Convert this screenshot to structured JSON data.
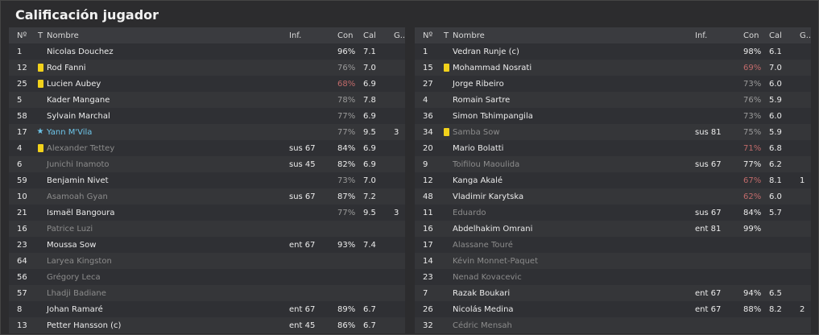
{
  "title": "Calificación jugador",
  "columns": {
    "num": "Nº",
    "t": "T",
    "name": "Nombre",
    "inf": "Inf.",
    "con": "Con",
    "cal": "Cal",
    "g": "G.."
  },
  "colors": {
    "yellow_card": "#f2d21b",
    "star": "#6ec6ea",
    "low_condition": "#c06a6a"
  },
  "left": [
    {
      "num": "1",
      "icon": "",
      "name": "Nicolas Douchez",
      "inf": "",
      "con": "96%",
      "cal": "7.1",
      "g": "",
      "style": "",
      "con_style": ""
    },
    {
      "num": "12",
      "icon": "yellow-card",
      "name": "Rod Fanni",
      "inf": "",
      "con": "76%",
      "cal": "7.0",
      "g": "",
      "style": "",
      "con_style": "mid"
    },
    {
      "num": "25",
      "icon": "yellow-card",
      "name": "Lucien Aubey",
      "inf": "",
      "con": "68%",
      "cal": "6.9",
      "g": "",
      "style": "",
      "con_style": "low"
    },
    {
      "num": "5",
      "icon": "",
      "name": "Kader Mangane",
      "inf": "",
      "con": "78%",
      "cal": "7.8",
      "g": "",
      "style": "",
      "con_style": "mid"
    },
    {
      "num": "58",
      "icon": "",
      "name": "Sylvain Marchal",
      "inf": "",
      "con": "77%",
      "cal": "6.9",
      "g": "",
      "style": "",
      "con_style": "mid"
    },
    {
      "num": "17",
      "icon": "star",
      "name": "Yann M'Vila",
      "inf": "",
      "con": "77%",
      "cal": "9.5",
      "g": "3",
      "style": "cyan",
      "con_style": "mid"
    },
    {
      "num": "4",
      "icon": "yellow-card",
      "name": "Alexander Tettey",
      "inf": "sus 67",
      "con": "84%",
      "cal": "6.9",
      "g": "",
      "style": "dim",
      "con_style": ""
    },
    {
      "num": "6",
      "icon": "",
      "name": "Junichi Inamoto",
      "inf": "sus 45",
      "con": "82%",
      "cal": "6.9",
      "g": "",
      "style": "dim",
      "con_style": ""
    },
    {
      "num": "59",
      "icon": "",
      "name": "Benjamin Nivet",
      "inf": "",
      "con": "73%",
      "cal": "7.0",
      "g": "",
      "style": "",
      "con_style": "mid"
    },
    {
      "num": "10",
      "icon": "",
      "name": "Asamoah Gyan",
      "inf": "sus 67",
      "con": "87%",
      "cal": "7.2",
      "g": "",
      "style": "dim",
      "con_style": ""
    },
    {
      "num": "21",
      "icon": "",
      "name": "Ismaël Bangoura",
      "inf": "",
      "con": "77%",
      "cal": "9.5",
      "g": "3",
      "style": "",
      "con_style": "mid"
    },
    {
      "num": "16",
      "icon": "",
      "name": "Patrice Luzi",
      "inf": "",
      "con": "",
      "cal": "",
      "g": "",
      "style": "dim",
      "con_style": ""
    },
    {
      "num": "23",
      "icon": "",
      "name": "Moussa Sow",
      "inf": "ent 67",
      "con": "93%",
      "cal": "7.4",
      "g": "",
      "style": "",
      "con_style": ""
    },
    {
      "num": "64",
      "icon": "",
      "name": "Laryea Kingston",
      "inf": "",
      "con": "",
      "cal": "",
      "g": "",
      "style": "dim",
      "con_style": ""
    },
    {
      "num": "56",
      "icon": "",
      "name": "Grégory Leca",
      "inf": "",
      "con": "",
      "cal": "",
      "g": "",
      "style": "dim",
      "con_style": ""
    },
    {
      "num": "57",
      "icon": "",
      "name": "Lhadji Badiane",
      "inf": "",
      "con": "",
      "cal": "",
      "g": "",
      "style": "dim",
      "con_style": ""
    },
    {
      "num": "8",
      "icon": "",
      "name": "Johan Ramaré",
      "inf": "ent 67",
      "con": "89%",
      "cal": "6.7",
      "g": "",
      "style": "",
      "con_style": ""
    },
    {
      "num": "13",
      "icon": "",
      "name": "Petter Hansson (c)",
      "inf": "ent 45",
      "con": "86%",
      "cal": "6.7",
      "g": "",
      "style": "",
      "con_style": ""
    }
  ],
  "right": [
    {
      "num": "1",
      "icon": "",
      "name": "Vedran Runje (c)",
      "inf": "",
      "con": "98%",
      "cal": "6.1",
      "g": "",
      "style": "",
      "con_style": ""
    },
    {
      "num": "15",
      "icon": "yellow-card",
      "name": "Mohammad Nosrati",
      "inf": "",
      "con": "69%",
      "cal": "7.0",
      "g": "",
      "style": "",
      "con_style": "low"
    },
    {
      "num": "27",
      "icon": "",
      "name": "Jorge Ribeiro",
      "inf": "",
      "con": "73%",
      "cal": "6.0",
      "g": "",
      "style": "",
      "con_style": "mid"
    },
    {
      "num": "4",
      "icon": "",
      "name": "Romain Sartre",
      "inf": "",
      "con": "76%",
      "cal": "5.9",
      "g": "",
      "style": "",
      "con_style": "mid"
    },
    {
      "num": "36",
      "icon": "",
      "name": "Simon Tshimpangila",
      "inf": "",
      "con": "73%",
      "cal": "6.0",
      "g": "",
      "style": "",
      "con_style": "mid"
    },
    {
      "num": "34",
      "icon": "yellow-card",
      "name": "Samba Sow",
      "inf": "sus 81",
      "con": "75%",
      "cal": "5.9",
      "g": "",
      "style": "dim",
      "con_style": "mid"
    },
    {
      "num": "20",
      "icon": "",
      "name": "Mario Bolatti",
      "inf": "",
      "con": "71%",
      "cal": "6.8",
      "g": "",
      "style": "",
      "con_style": "low"
    },
    {
      "num": "9",
      "icon": "",
      "name": "Toifilou Maoulida",
      "inf": "sus 67",
      "con": "77%",
      "cal": "6.2",
      "g": "",
      "style": "dim",
      "con_style": ""
    },
    {
      "num": "12",
      "icon": "",
      "name": "Kanga Akalé",
      "inf": "",
      "con": "67%",
      "cal": "8.1",
      "g": "1",
      "style": "",
      "con_style": "low"
    },
    {
      "num": "48",
      "icon": "",
      "name": "Vladimir Karytska",
      "inf": "",
      "con": "62%",
      "cal": "6.0",
      "g": "",
      "style": "",
      "con_style": "low"
    },
    {
      "num": "11",
      "icon": "",
      "name": "Eduardo",
      "inf": "sus 67",
      "con": "84%",
      "cal": "5.7",
      "g": "",
      "style": "dim",
      "con_style": ""
    },
    {
      "num": "16",
      "icon": "",
      "name": "Abdelhakim Omrani",
      "inf": "ent 81",
      "con": "99%",
      "cal": "",
      "g": "",
      "style": "",
      "con_style": ""
    },
    {
      "num": "17",
      "icon": "",
      "name": "Alassane Touré",
      "inf": "",
      "con": "",
      "cal": "",
      "g": "",
      "style": "dim",
      "con_style": ""
    },
    {
      "num": "14",
      "icon": "",
      "name": "Kévin Monnet-Paquet",
      "inf": "",
      "con": "",
      "cal": "",
      "g": "",
      "style": "dim",
      "con_style": ""
    },
    {
      "num": "23",
      "icon": "",
      "name": "Nenad Kovacevic",
      "inf": "",
      "con": "",
      "cal": "",
      "g": "",
      "style": "dim",
      "con_style": ""
    },
    {
      "num": "7",
      "icon": "",
      "name": "Razak Boukari",
      "inf": "ent 67",
      "con": "94%",
      "cal": "6.5",
      "g": "",
      "style": "",
      "con_style": ""
    },
    {
      "num": "26",
      "icon": "",
      "name": "Nicolás Medina",
      "inf": "ent 67",
      "con": "88%",
      "cal": "8.2",
      "g": "2",
      "style": "",
      "con_style": ""
    },
    {
      "num": "32",
      "icon": "",
      "name": "Cédric Mensah",
      "inf": "",
      "con": "",
      "cal": "",
      "g": "",
      "style": "dim",
      "con_style": ""
    }
  ]
}
